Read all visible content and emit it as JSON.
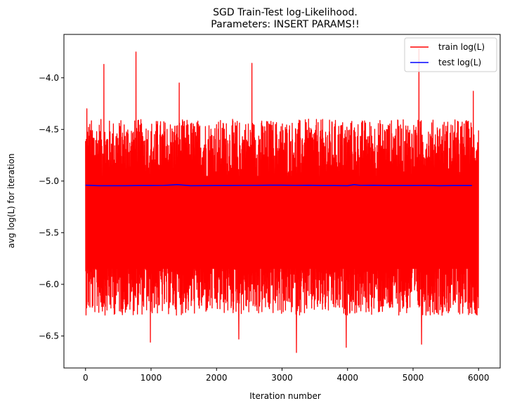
{
  "chart_data": {
    "type": "line",
    "title_line1": "SGD Train-Test log-Likelihood.",
    "title_line2": "Parameters: INSERT PARAMS!!",
    "xlabel": "Iteration number",
    "ylabel": "avg log(L) for iteration",
    "xlim": [
      -330,
      6330
    ],
    "ylim": [
      -6.81,
      -3.58
    ],
    "xticks": [
      0,
      1000,
      2000,
      3000,
      4000,
      5000,
      6000
    ],
    "yticks": [
      -6.5,
      -6.0,
      -5.5,
      -5.0,
      -4.5,
      -4.0
    ],
    "xtick_labels": [
      "0",
      "1000",
      "2000",
      "3000",
      "4000",
      "5000",
      "6000"
    ],
    "ytick_labels": [
      "−6.5",
      "−6.0",
      "−5.5",
      "−5.0",
      "−4.5",
      "−4.0"
    ],
    "legend_position": "top-right",
    "series": [
      {
        "name": "train log(L)",
        "color": "#ff0000",
        "x_range": [
          0,
          6000
        ],
        "baseline": -5.35,
        "typical_max": -4.4,
        "typical_min": -6.3,
        "peaks": [
          {
            "x": 20,
            "y": -4.3
          },
          {
            "x": 280,
            "y": -3.87
          },
          {
            "x": 770,
            "y": -3.75
          },
          {
            "x": 1430,
            "y": -4.05
          },
          {
            "x": 2540,
            "y": -3.86
          },
          {
            "x": 5090,
            "y": -3.72
          },
          {
            "x": 5920,
            "y": -4.13
          }
        ],
        "troughs": [
          {
            "x": 990,
            "y": -6.56
          },
          {
            "x": 3220,
            "y": -6.66
          },
          {
            "x": 3980,
            "y": -6.61
          },
          {
            "x": 5130,
            "y": -6.58
          },
          {
            "x": 2340,
            "y": -6.53
          }
        ]
      },
      {
        "name": "test log(L)",
        "color": "#0000ff",
        "x": [
          0,
          200,
          400,
          600,
          800,
          1000,
          1200,
          1400,
          1600,
          1800,
          2000,
          2200,
          2400,
          2600,
          2800,
          3000,
          3200,
          3400,
          3600,
          3800,
          4000,
          4100,
          4200,
          4400,
          4600,
          4800,
          5000,
          5200,
          5400,
          5600,
          5900
        ],
        "values": [
          -5.04,
          -5.045,
          -5.045,
          -5.045,
          -5.043,
          -5.043,
          -5.042,
          -5.035,
          -5.045,
          -5.044,
          -5.043,
          -5.043,
          -5.042,
          -5.042,
          -5.04,
          -5.04,
          -5.042,
          -5.041,
          -5.043,
          -5.043,
          -5.045,
          -5.035,
          -5.042,
          -5.041,
          -5.043,
          -5.043,
          -5.043,
          -5.042,
          -5.045,
          -5.043,
          -5.043
        ]
      }
    ]
  }
}
